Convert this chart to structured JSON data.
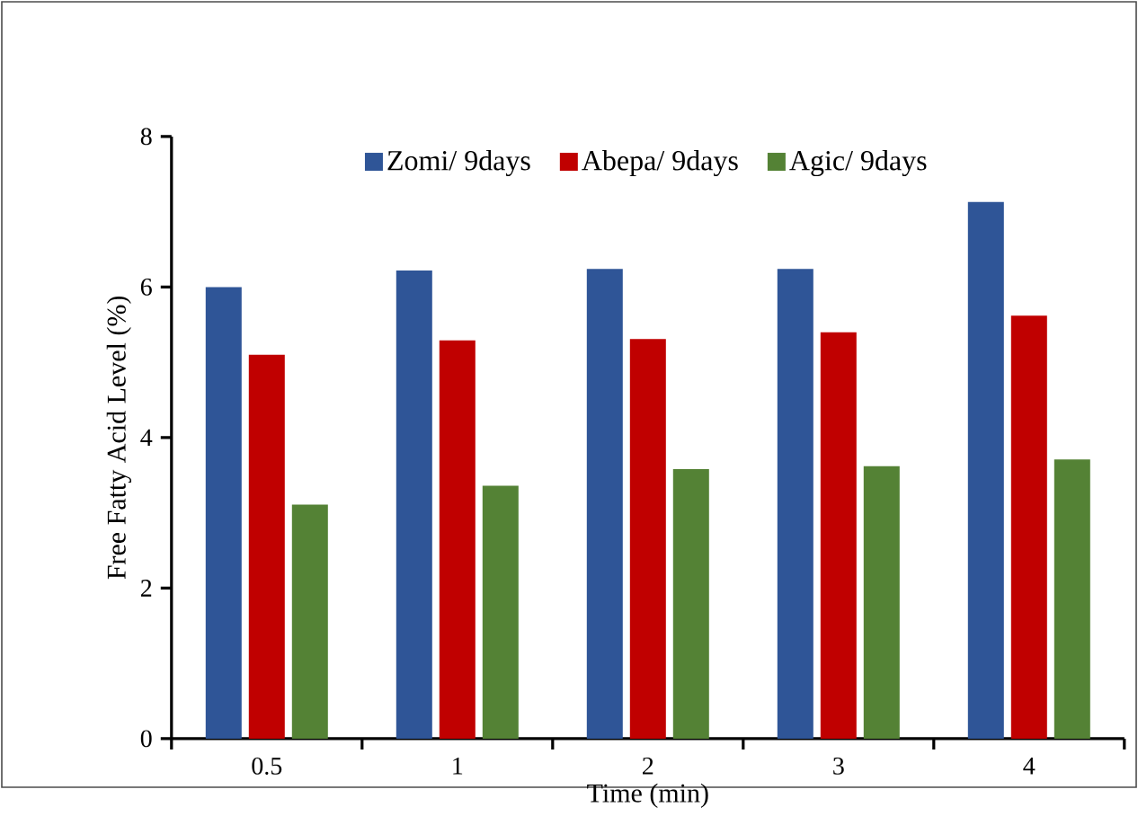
{
  "chart_data": {
    "type": "bar",
    "xlabel": "Time (min)",
    "ylabel": "Free Fatty Acid Level (%)",
    "categories": [
      "0.5",
      "1",
      "2",
      "3",
      "4"
    ],
    "series": [
      {
        "name": "Zomi/ 9days",
        "color": "#2f5597",
        "values": [
          6.0,
          6.22,
          6.24,
          6.24,
          7.13
        ]
      },
      {
        "name": "Abepa/ 9days",
        "color": "#c00000",
        "values": [
          5.1,
          5.29,
          5.31,
          5.4,
          5.62
        ]
      },
      {
        "name": "Agic/ 9days",
        "color": "#548235",
        "values": [
          3.11,
          3.36,
          3.58,
          3.62,
          3.71
        ]
      }
    ],
    "ylim": [
      0,
      8
    ],
    "yticks": [
      0,
      2,
      4,
      6,
      8
    ],
    "legend": "top",
    "grid": false
  }
}
